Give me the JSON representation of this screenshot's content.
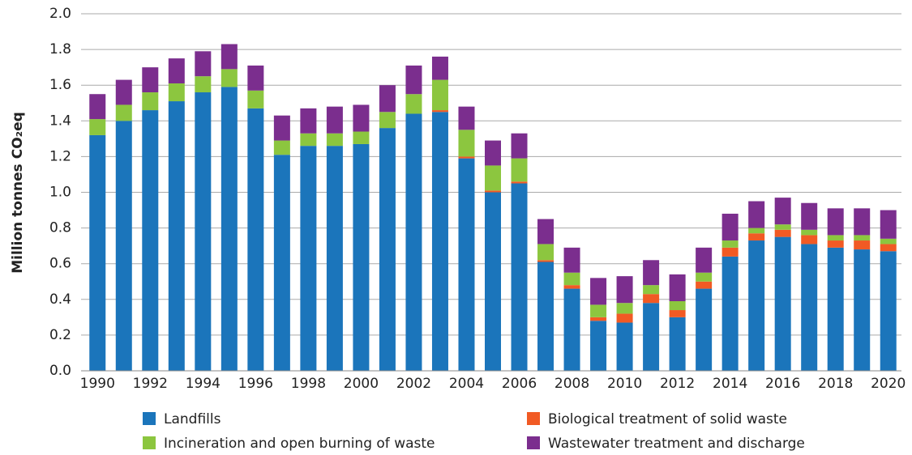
{
  "chart_data": {
    "type": "stacked_bar",
    "y_label": "Million tonnes CO₂eq",
    "categories": [
      "1990",
      null,
      "1992",
      null,
      "1994",
      null,
      "1996",
      null,
      "1998",
      null,
      "2000",
      null,
      "2002",
      null,
      "2004",
      null,
      "2006",
      null,
      "2008",
      null,
      "2010",
      null,
      "2012",
      null,
      "2014",
      null,
      "2016",
      null,
      "2018",
      null,
      "2020"
    ],
    "series": [
      {
        "name": "Landfills",
        "color": "#1b75bb",
        "values": [
          1.32,
          1.4,
          1.46,
          1.51,
          1.56,
          1.59,
          1.47,
          1.21,
          1.26,
          1.26,
          1.27,
          1.36,
          1.44,
          1.45,
          1.19,
          1.0,
          1.05,
          0.61,
          0.46,
          0.28,
          0.27,
          0.38,
          0.3,
          0.46,
          0.64,
          0.73,
          0.75,
          0.71,
          0.69,
          0.68,
          0.67
        ]
      },
      {
        "name": "Biological treatment of solid waste",
        "color": "#f15a24",
        "values": [
          0,
          0,
          0,
          0,
          0,
          0,
          0,
          0,
          0,
          0,
          0,
          0,
          0,
          0.01,
          0.01,
          0.01,
          0.01,
          0.01,
          0.02,
          0.02,
          0.05,
          0.05,
          0.04,
          0.04,
          0.05,
          0.04,
          0.04,
          0.05,
          0.04,
          0.05,
          0.04
        ]
      },
      {
        "name": "Incineration and open burning of waste",
        "color": "#8cc63f",
        "values": [
          0.09,
          0.09,
          0.1,
          0.1,
          0.09,
          0.1,
          0.1,
          0.08,
          0.07,
          0.07,
          0.07,
          0.09,
          0.11,
          0.17,
          0.15,
          0.14,
          0.13,
          0.09,
          0.07,
          0.07,
          0.06,
          0.05,
          0.05,
          0.05,
          0.04,
          0.03,
          0.03,
          0.03,
          0.03,
          0.03,
          0.03
        ]
      },
      {
        "name": "Wastewater treatment and discharge",
        "color": "#7b2e8e",
        "values": [
          0.14,
          0.14,
          0.14,
          0.14,
          0.14,
          0.14,
          0.14,
          0.14,
          0.14,
          0.15,
          0.15,
          0.15,
          0.16,
          0.13,
          0.13,
          0.14,
          0.14,
          0.14,
          0.14,
          0.15,
          0.15,
          0.14,
          0.15,
          0.14,
          0.15,
          0.15,
          0.15,
          0.15,
          0.15,
          0.15,
          0.16
        ]
      }
    ],
    "ylim": [
      0,
      2
    ],
    "yticks": [
      {
        "value": 0,
        "label": "0.0"
      },
      0.2,
      0.4,
      0.6,
      0.8,
      {
        "value": 1,
        "label": "1.0"
      },
      1.2,
      1.4,
      1.6,
      1.8,
      {
        "value": 2,
        "label": "2.0"
      }
    ],
    "grid": true
  }
}
